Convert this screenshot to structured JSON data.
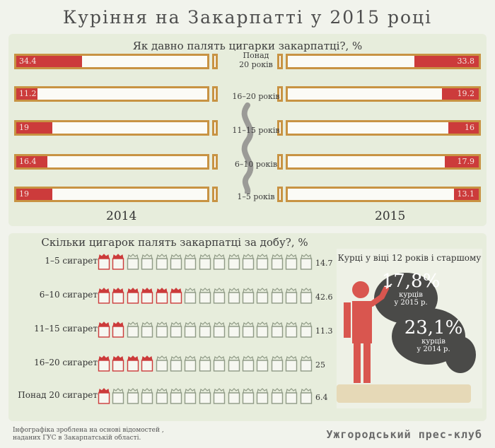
{
  "title": "Куріння на Закарпатті у 2015 році",
  "chart_data": [
    {
      "type": "bar",
      "title": "Як давно палять цигарки закарпатці?, %",
      "categories": [
        "Понад 20 років",
        "16–20 років",
        "11–15 років",
        "6–10 років",
        "1–5 років"
      ],
      "series": [
        {
          "name": "2014",
          "values": [
            34.4,
            11.2,
            19,
            16.4,
            19
          ]
        },
        {
          "name": "2015",
          "values": [
            33.8,
            19.2,
            16,
            17.9,
            13.1
          ]
        }
      ],
      "max": 100
    },
    {
      "type": "bar",
      "title": "Скільки цигарок палять закарпатці за добу?, %",
      "categories": [
        "1–5 сигарет",
        "6–10 сигарет",
        "11–15 сигарет",
        "16–20 сигарет",
        "Понад 20 сигарет"
      ],
      "values": [
        14.7,
        42.6,
        11.3,
        25,
        6.4
      ],
      "value_labels": [
        "14.7",
        "42.6",
        "11.3",
        "25",
        "6.4"
      ],
      "max": 100
    }
  ],
  "top_value_labels_2014": [
    "34.4",
    "11.2",
    "19",
    "16.4",
    "19"
  ],
  "top_value_labels_2015": [
    "33.8",
    "19.2",
    "16",
    "17.9",
    "13.1"
  ],
  "age_labels": [
    [
      "Понад",
      "20 років"
    ],
    [
      "16–20 років"
    ],
    [
      "11–15 років"
    ],
    [
      "6–10 років"
    ],
    [
      "1–5 років"
    ]
  ],
  "year_left": "2014",
  "year_right": "2015",
  "smokers": {
    "title": "Курці у віці 12 років і старшому",
    "stat_2015_value": "17,8%",
    "stat_2015_line1": "курців",
    "stat_2015_line2": "у 2015 р.",
    "stat_2014_value": "23,1%",
    "stat_2014_line1": "курців",
    "stat_2014_line2": "у 2014 р."
  },
  "footer": {
    "note_line1": "Інфографіка зроблена на основі відомостей ,",
    "note_line2": "наданих ГУС в Закарпатській області.",
    "brand": "Ужгородський прес-клуб"
  },
  "colors": {
    "accent_red": "#cc3b3b",
    "bar_border": "#c89343",
    "cloud": "#4a4a48",
    "figure": "#d9564f",
    "pack_outline": "#8f9a86"
  }
}
